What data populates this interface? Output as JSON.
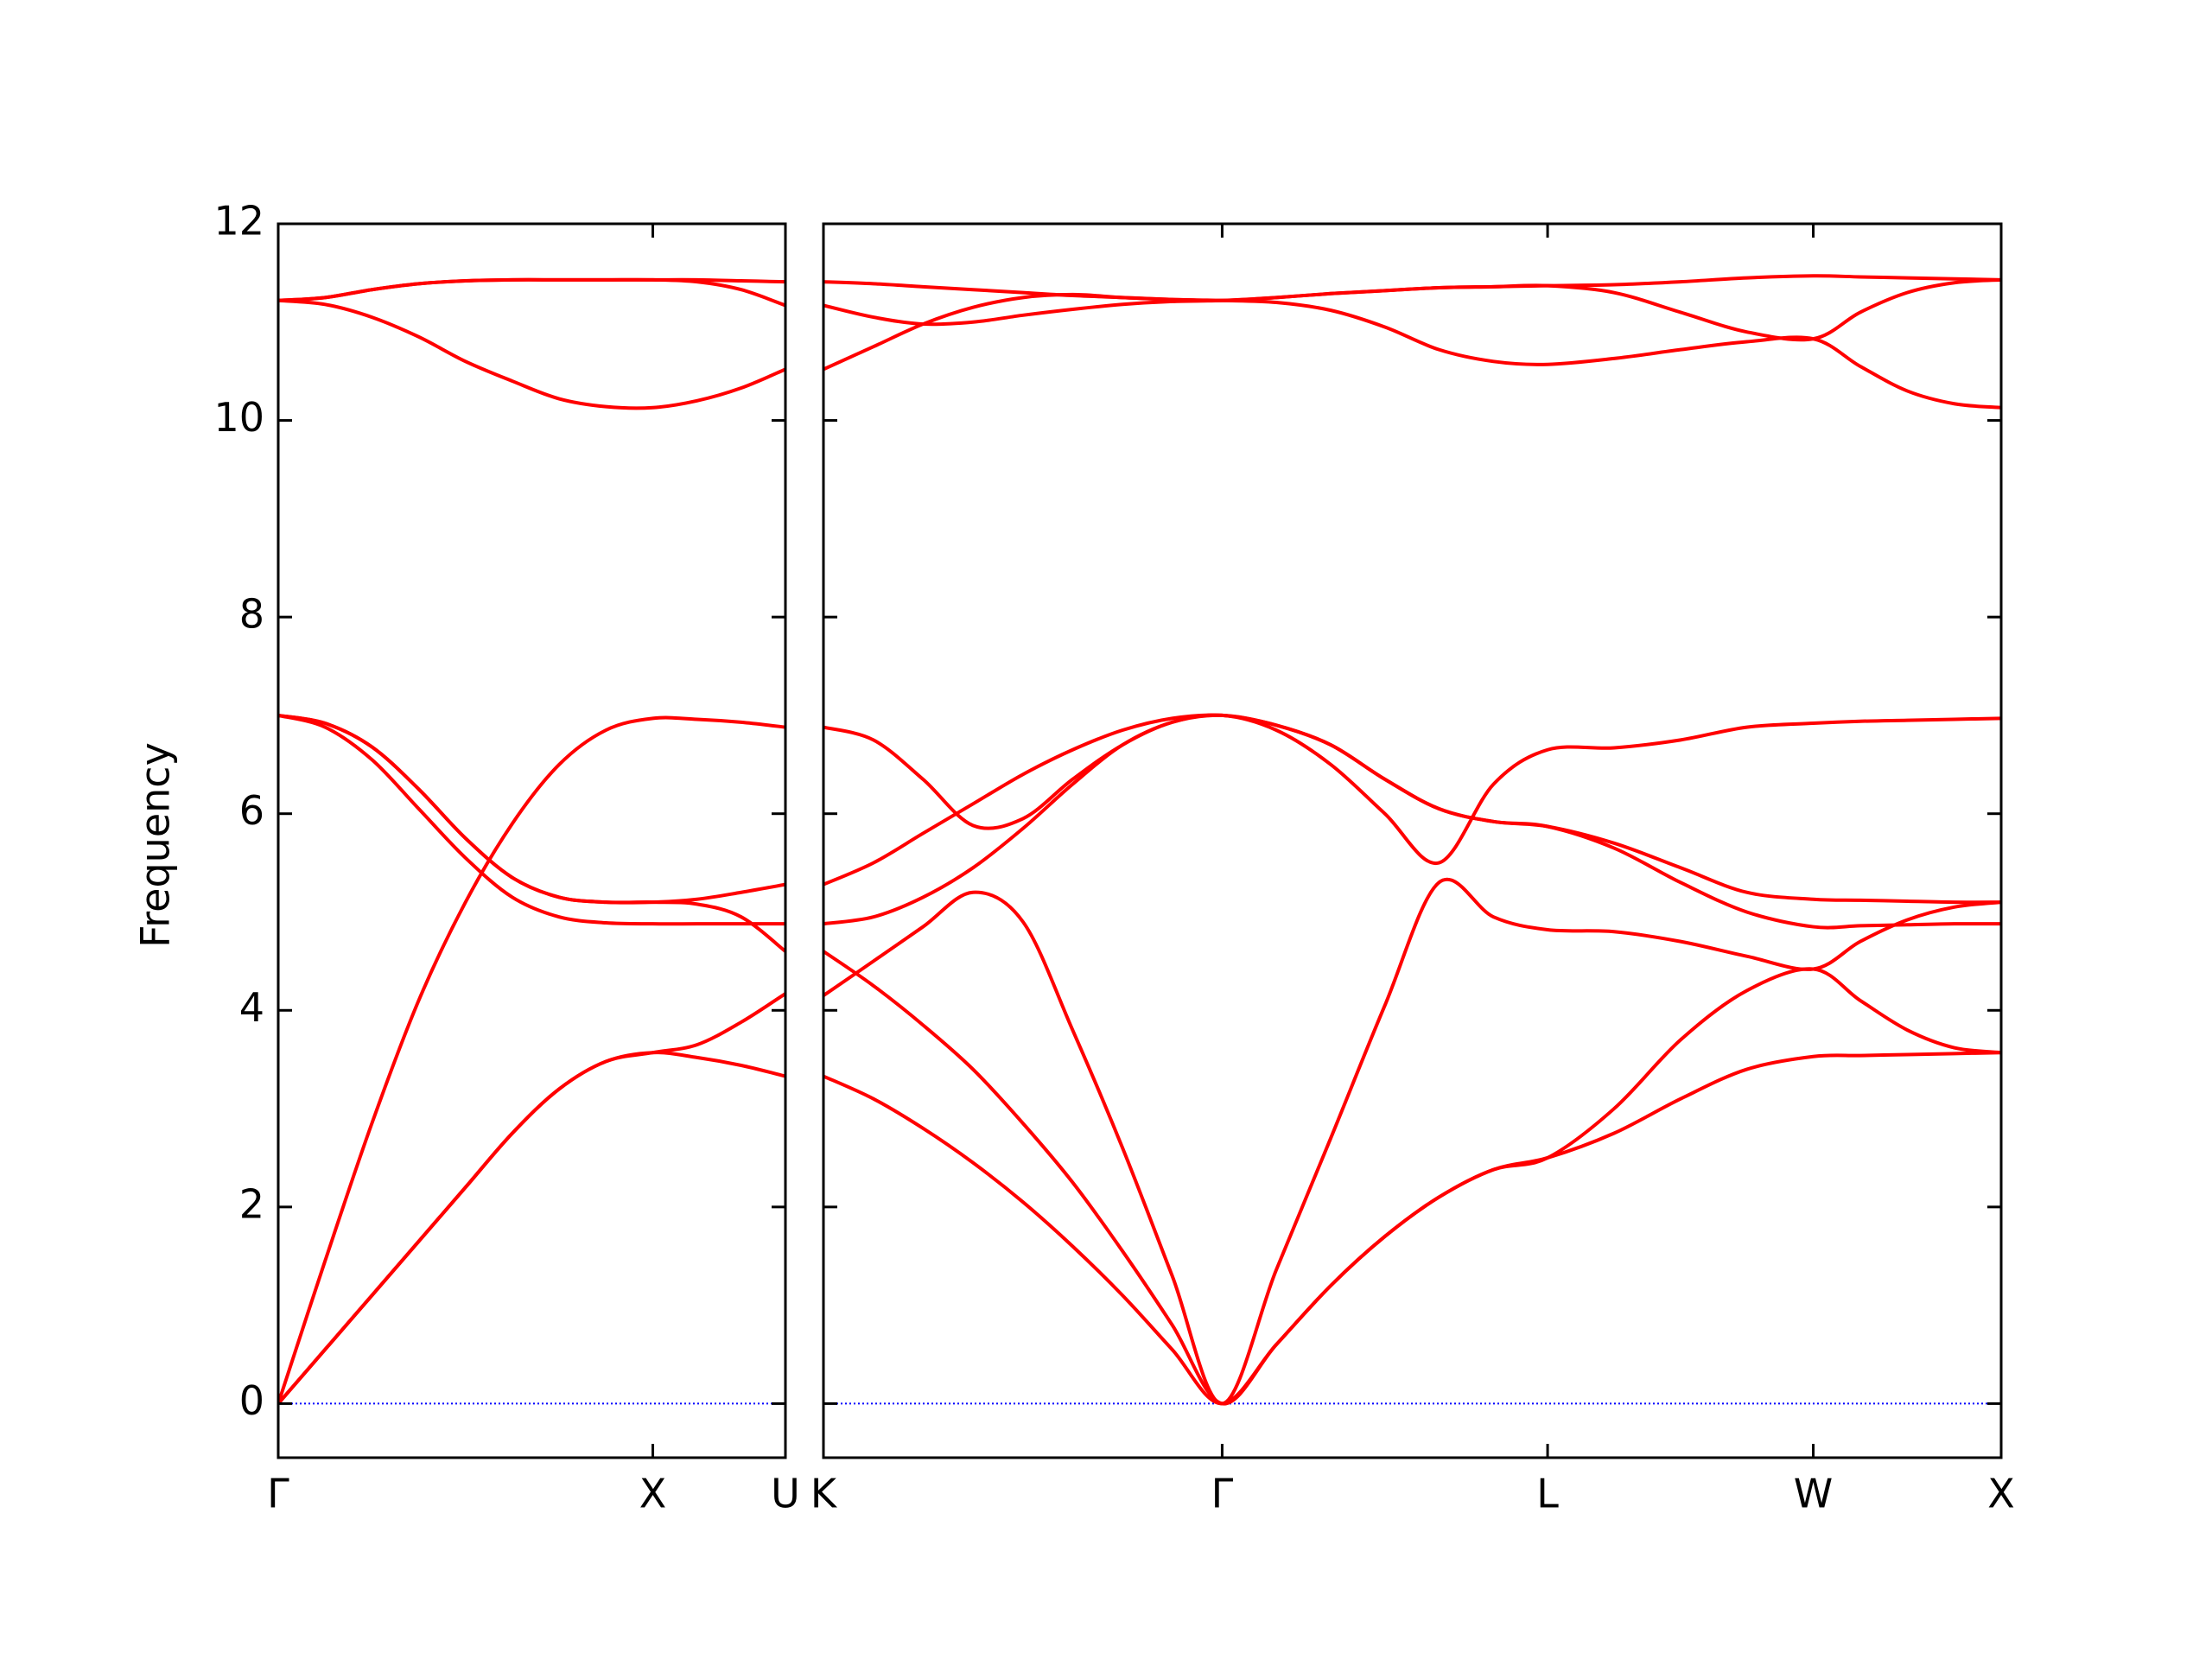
{
  "chart_data": [
    {
      "type": "line",
      "ylabel": "Frequency",
      "show_ytick_labels": true,
      "x": [
        0,
        0.125,
        0.25,
        0.375,
        0.5,
        0.625,
        0.75,
        0.875,
        1,
        1.118,
        1.236,
        1.354
      ],
      "xlim": [
        0,
        1.354
      ],
      "xticks": [
        {
          "value": 0,
          "label": "Γ"
        },
        {
          "value": 1,
          "label": "X"
        },
        {
          "value": 1.354,
          "label": "U"
        }
      ],
      "ylim": [
        -0.55,
        12
      ],
      "yticks": [
        0,
        2,
        4,
        6,
        8,
        10,
        12
      ],
      "hline": {
        "value": 0,
        "color": "#0000ff"
      },
      "series": [
        {
          "color": "#ff0000",
          "values": [
            0,
            0.55,
            1.1,
            1.65,
            2.2,
            2.75,
            3.2,
            3.48,
            3.57,
            3.52,
            3.44,
            3.33
          ]
        },
        {
          "color": "#ff0000",
          "values": [
            0,
            0.55,
            1.1,
            1.65,
            2.2,
            2.75,
            3.2,
            3.48,
            3.57,
            3.65,
            3.88,
            4.17
          ]
        },
        {
          "color": "#ff0000",
          "values": [
            0,
            1.45,
            2.85,
            4.1,
            5.1,
            5.9,
            6.5,
            6.85,
            6.97,
            6.96,
            6.93,
            6.88
          ]
        },
        {
          "color": "#ff0000",
          "values": [
            7.0,
            6.88,
            6.55,
            6.05,
            5.55,
            5.15,
            4.95,
            4.89,
            4.88,
            4.88,
            4.88,
            4.88
          ]
        },
        {
          "color": "#ff0000",
          "values": [
            7.0,
            6.92,
            6.68,
            6.25,
            5.75,
            5.35,
            5.15,
            5.1,
            5.1,
            5.08,
            4.95,
            4.6
          ]
        },
        {
          "color": "#ff0000",
          "values": [
            7.0,
            6.92,
            6.68,
            6.25,
            5.75,
            5.35,
            5.15,
            5.1,
            5.1,
            5.13,
            5.2,
            5.28
          ]
        },
        {
          "color": "#ff0000",
          "values": [
            11.22,
            11.18,
            11.05,
            10.85,
            10.6,
            10.4,
            10.22,
            10.14,
            10.13,
            10.2,
            10.33,
            10.52
          ]
        },
        {
          "color": "#ff0000",
          "values": [
            11.22,
            11.25,
            11.33,
            11.39,
            11.42,
            11.43,
            11.43,
            11.43,
            11.43,
            11.41,
            11.33,
            11.17
          ]
        },
        {
          "color": "#ff0000",
          "values": [
            11.22,
            11.25,
            11.33,
            11.39,
            11.42,
            11.43,
            11.43,
            11.43,
            11.43,
            11.43,
            11.42,
            11.41
          ]
        }
      ]
    },
    {
      "type": "line",
      "show_ytick_labels": false,
      "x": [
        1.354,
        1.487,
        1.619,
        1.752,
        1.885,
        2.017,
        2.15,
        2.282,
        2.415,
        2.559,
        2.704,
        2.848,
        2.992,
        3.137,
        3.281,
        3.458,
        3.635,
        3.811,
        3.988,
        4.113,
        4.238,
        4.363,
        4.488
      ],
      "xlim": [
        1.354,
        4.488
      ],
      "xticks": [
        {
          "value": 1.354,
          "label": "K"
        },
        {
          "value": 2.415,
          "label": "Γ"
        },
        {
          "value": 3.281,
          "label": "L"
        },
        {
          "value": 3.988,
          "label": "W"
        },
        {
          "value": 4.488,
          "label": "X"
        }
      ],
      "ylim": [
        -0.55,
        12
      ],
      "yticks": [
        0,
        2,
        4,
        6,
        8,
        10,
        12
      ],
      "hline": {
        "value": 0,
        "color": "#0000ff"
      },
      "series": [
        {
          "color": "#ff0000",
          "values": [
            3.33,
            3.1,
            2.8,
            2.45,
            2.05,
            1.6,
            1.1,
            0.55,
            0,
            0.6,
            1.2,
            1.7,
            2.1,
            2.38,
            2.5,
            2.75,
            3.1,
            3.4,
            3.53,
            3.54,
            3.55,
            3.56,
            3.57
          ]
        },
        {
          "color": "#ff0000",
          "values": [
            4.6,
            4.25,
            3.85,
            3.4,
            2.85,
            2.25,
            1.55,
            0.8,
            0,
            0.6,
            1.2,
            1.7,
            2.1,
            2.38,
            2.5,
            3.0,
            3.7,
            4.2,
            4.42,
            4.1,
            3.8,
            3.62,
            3.57
          ]
        },
        {
          "color": "#ff0000",
          "values": [
            4.15,
            4.5,
            4.85,
            5.2,
            4.9,
            3.8,
            2.6,
            1.3,
            0,
            1.36,
            2.7,
            4.05,
            5.3,
            4.95,
            4.82,
            4.8,
            4.7,
            4.55,
            4.42,
            4.7,
            4.92,
            5.05,
            5.1
          ]
        },
        {
          "color": "#ff0000",
          "values": [
            4.88,
            4.95,
            5.15,
            5.45,
            5.85,
            6.3,
            6.7,
            6.93,
            7.0,
            6.9,
            6.7,
            6.35,
            6.05,
            5.92,
            5.87,
            5.65,
            5.3,
            5.0,
            4.85,
            4.86,
            4.87,
            4.88,
            4.88
          ]
        },
        {
          "color": "#ff0000",
          "values": [
            5.28,
            5.5,
            5.8,
            6.1,
            6.4,
            6.65,
            6.85,
            6.97,
            7.0,
            6.9,
            6.7,
            6.35,
            6.05,
            5.92,
            5.87,
            5.7,
            5.45,
            5.2,
            5.13,
            5.12,
            5.11,
            5.1,
            5.1
          ]
        },
        {
          "color": "#ff0000",
          "values": [
            6.88,
            6.75,
            6.35,
            5.88,
            5.95,
            6.35,
            6.7,
            6.93,
            7.0,
            6.85,
            6.5,
            6.0,
            5.5,
            6.3,
            6.65,
            6.67,
            6.75,
            6.88,
            6.92,
            6.94,
            6.95,
            6.96,
            6.97
          ]
        },
        {
          "color": "#ff0000",
          "values": [
            10.52,
            10.75,
            10.98,
            11.15,
            11.25,
            11.28,
            11.25,
            11.23,
            11.22,
            11.2,
            11.12,
            10.95,
            10.72,
            10.6,
            10.57,
            10.63,
            10.72,
            10.8,
            10.83,
            10.55,
            10.3,
            10.17,
            10.13
          ]
        },
        {
          "color": "#ff0000",
          "values": [
            11.17,
            11.05,
            10.98,
            11.0,
            11.07,
            11.13,
            11.18,
            11.21,
            11.22,
            11.25,
            11.29,
            11.32,
            11.35,
            11.36,
            11.37,
            11.3,
            11.1,
            10.9,
            10.83,
            11.1,
            11.3,
            11.4,
            11.43
          ]
        },
        {
          "color": "#ff0000",
          "values": [
            11.41,
            11.39,
            11.36,
            11.33,
            11.3,
            11.27,
            11.25,
            11.23,
            11.22,
            11.25,
            11.29,
            11.32,
            11.35,
            11.36,
            11.37,
            11.38,
            11.41,
            11.45,
            11.47,
            11.46,
            11.45,
            11.44,
            11.43
          ]
        }
      ]
    }
  ]
}
